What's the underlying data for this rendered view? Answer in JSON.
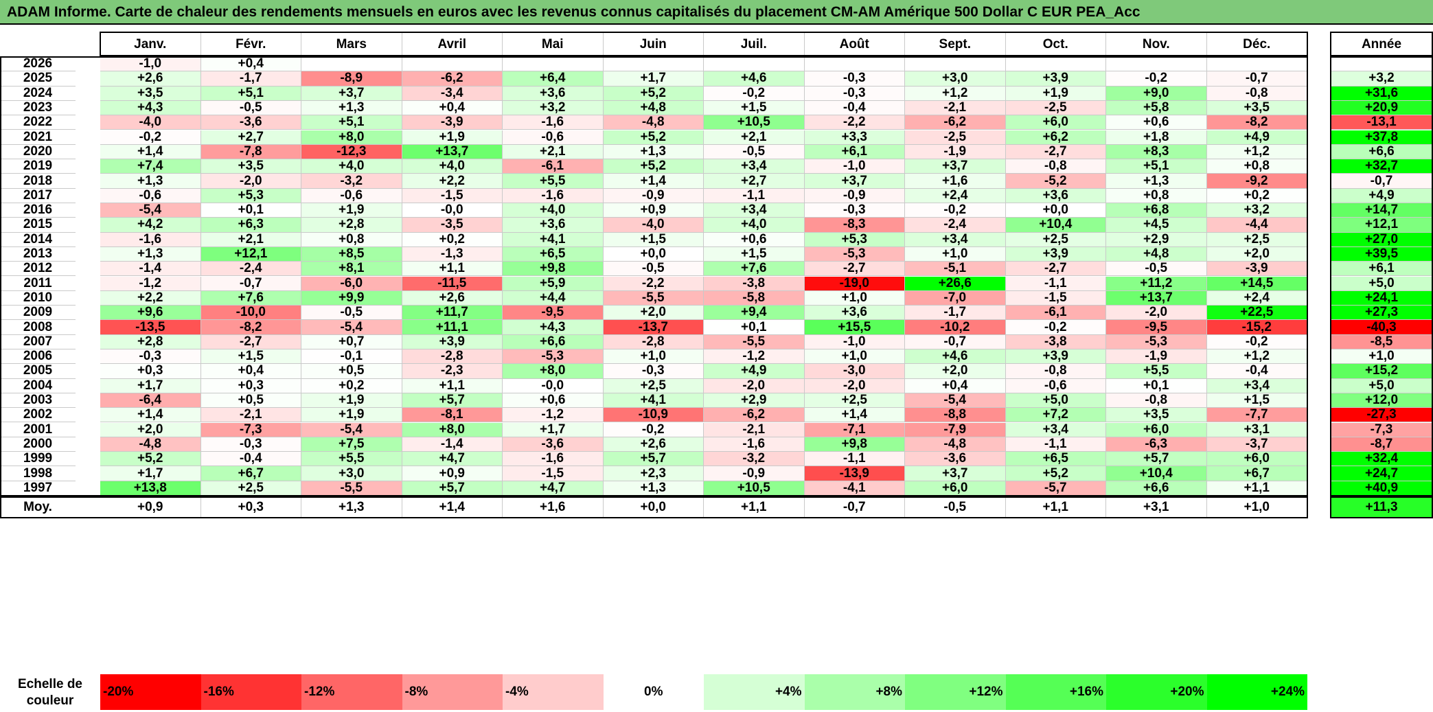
{
  "title": "ADAM Informe. Carte de chaleur des rendements mensuels en euros avec les revenus connus capitalisés du placement CM-AM Amérique 500 Dollar C EUR PEA_Acc",
  "months": [
    "Janv.",
    "Févr.",
    "Mars",
    "Avril",
    "Mai",
    "Juin",
    "Juil.",
    "Août",
    "Sept.",
    "Oct.",
    "Nov.",
    "Déc."
  ],
  "year_header": "Année",
  "avg_label": "Moy.",
  "scale_label": "Echelle de couleur",
  "scale_stops": [
    "-20%",
    "-16%",
    "-12%",
    "-8%",
    "-4%",
    "0%",
    "+4%",
    "+8%",
    "+12%",
    "+16%",
    "+20%",
    "+24%"
  ],
  "chart_data": {
    "type": "heatmap",
    "categories": [
      "Janv.",
      "Févr.",
      "Mars",
      "Avril",
      "Mai",
      "Juin",
      "Juil.",
      "Août",
      "Sept.",
      "Oct.",
      "Nov.",
      "Déc."
    ],
    "rows": [
      {
        "year": "2026",
        "months": [
          "-1,0",
          "+0,4",
          "",
          "",
          "",
          "",
          "",
          "",
          "",
          "",
          "",
          ""
        ],
        "annual": ""
      },
      {
        "year": "2025",
        "months": [
          "+2,6",
          "-1,7",
          "-8,9",
          "-6,2",
          "+6,4",
          "+1,7",
          "+4,6",
          "-0,3",
          "+3,0",
          "+3,9",
          "-0,2",
          "-0,7"
        ],
        "annual": "+3,2"
      },
      {
        "year": "2024",
        "months": [
          "+3,5",
          "+5,1",
          "+3,7",
          "-3,4",
          "+3,6",
          "+5,2",
          "-0,2",
          "-0,3",
          "+1,2",
          "+1,9",
          "+9,0",
          "-0,8"
        ],
        "annual": "+31,6"
      },
      {
        "year": "2023",
        "months": [
          "+4,3",
          "-0,5",
          "+1,3",
          "+0,4",
          "+3,2",
          "+4,8",
          "+1,5",
          "-0,4",
          "-2,1",
          "-2,5",
          "+5,8",
          "+3,5"
        ],
        "annual": "+20,9"
      },
      {
        "year": "2022",
        "months": [
          "-4,0",
          "-3,6",
          "+5,1",
          "-3,9",
          "-1,6",
          "-4,8",
          "+10,5",
          "-2,2",
          "-6,2",
          "+6,0",
          "+0,6",
          "-8,2"
        ],
        "annual": "-13,1"
      },
      {
        "year": "2021",
        "months": [
          "-0,2",
          "+2,7",
          "+8,0",
          "+1,9",
          "-0,6",
          "+5,2",
          "+2,1",
          "+3,3",
          "-2,5",
          "+6,2",
          "+1,8",
          "+4,9"
        ],
        "annual": "+37,8"
      },
      {
        "year": "2020",
        "months": [
          "+1,4",
          "-7,8",
          "-12,3",
          "+13,7",
          "+2,1",
          "+1,3",
          "-0,5",
          "+6,1",
          "-1,9",
          "-2,7",
          "+8,3",
          "+1,2"
        ],
        "annual": "+6,6"
      },
      {
        "year": "2019",
        "months": [
          "+7,4",
          "+3,5",
          "+4,0",
          "+4,0",
          "-6,1",
          "+5,2",
          "+3,4",
          "-1,0",
          "+3,7",
          "-0,8",
          "+5,1",
          "+0,8"
        ],
        "annual": "+32,7"
      },
      {
        "year": "2018",
        "months": [
          "+1,3",
          "-2,0",
          "-3,2",
          "+2,2",
          "+5,5",
          "+1,4",
          "+2,7",
          "+3,7",
          "+1,6",
          "-5,2",
          "+1,3",
          "-9,2"
        ],
        "annual": "-0,7"
      },
      {
        "year": "2017",
        "months": [
          "-0,6",
          "+5,3",
          "-0,6",
          "-1,5",
          "-1,6",
          "-0,9",
          "-1,1",
          "-0,9",
          "+2,4",
          "+3,6",
          "+0,8",
          "+0,2"
        ],
        "annual": "+4,9"
      },
      {
        "year": "2016",
        "months": [
          "-5,4",
          "+0,1",
          "+1,9",
          "-0,0",
          "+4,0",
          "+0,9",
          "+3,4",
          "-0,3",
          "-0,2",
          "+0,0",
          "+6,8",
          "+3,2"
        ],
        "annual": "+14,7"
      },
      {
        "year": "2015",
        "months": [
          "+4,2",
          "+6,3",
          "+2,8",
          "-3,5",
          "+3,6",
          "-4,0",
          "+4,0",
          "-8,3",
          "-2,4",
          "+10,4",
          "+4,5",
          "-4,4"
        ],
        "annual": "+12,1"
      },
      {
        "year": "2014",
        "months": [
          "-1,6",
          "+2,1",
          "+0,8",
          "+0,2",
          "+4,1",
          "+1,5",
          "+0,6",
          "+5,3",
          "+3,4",
          "+2,5",
          "+2,9",
          "+2,5"
        ],
        "annual": "+27,0"
      },
      {
        "year": "2013",
        "months": [
          "+1,3",
          "+12,1",
          "+8,5",
          "-1,3",
          "+6,5",
          "+0,0",
          "+1,5",
          "-5,3",
          "+1,0",
          "+3,9",
          "+4,8",
          "+2,0"
        ],
        "annual": "+39,5"
      },
      {
        "year": "2012",
        "months": [
          "-1,4",
          "-2,4",
          "+8,1",
          "+1,1",
          "+9,8",
          "-0,5",
          "+7,6",
          "-2,7",
          "-5,1",
          "-2,7",
          "-0,5",
          "-3,9"
        ],
        "annual": "+6,1"
      },
      {
        "year": "2011",
        "months": [
          "-1,2",
          "-0,7",
          "-6,0",
          "-11,5",
          "+5,9",
          "-2,2",
          "-3,8",
          "-19,0",
          "+26,6",
          "-1,1",
          "+11,2",
          "+14,5"
        ],
        "annual": "+5,0"
      },
      {
        "year": "2010",
        "months": [
          "+2,2",
          "+7,6",
          "+9,9",
          "+2,6",
          "+4,4",
          "-5,5",
          "-5,8",
          "+1,0",
          "-7,0",
          "-1,5",
          "+13,7",
          "+2,4"
        ],
        "annual": "+24,1"
      },
      {
        "year": "2009",
        "months": [
          "+9,6",
          "-10,0",
          "-0,5",
          "+11,7",
          "-9,5",
          "+2,0",
          "+9,4",
          "+3,6",
          "-1,7",
          "-6,1",
          "-2,0",
          "+22,5"
        ],
        "annual": "+27,3"
      },
      {
        "year": "2008",
        "months": [
          "-13,5",
          "-8,2",
          "-5,4",
          "+11,1",
          "+4,3",
          "-13,7",
          "+0,1",
          "+15,5",
          "-10,2",
          "-0,2",
          "-9,5",
          "-15,2"
        ],
        "annual": "-40,3"
      },
      {
        "year": "2007",
        "months": [
          "+2,8",
          "-2,7",
          "+0,7",
          "+3,9",
          "+6,6",
          "-2,8",
          "-5,5",
          "-1,0",
          "-0,7",
          "-3,8",
          "-5,3",
          "-0,2"
        ],
        "annual": "-8,5"
      },
      {
        "year": "2006",
        "months": [
          "-0,3",
          "+1,5",
          "-0,1",
          "-2,8",
          "-5,3",
          "+1,0",
          "-1,2",
          "+1,0",
          "+4,6",
          "+3,9",
          "-1,9",
          "+1,2"
        ],
        "annual": "+1,0"
      },
      {
        "year": "2005",
        "months": [
          "+0,3",
          "+0,4",
          "+0,5",
          "-2,3",
          "+8,0",
          "-0,3",
          "+4,9",
          "-3,0",
          "+2,0",
          "-0,8",
          "+5,5",
          "-0,4"
        ],
        "annual": "+15,2"
      },
      {
        "year": "2004",
        "months": [
          "+1,7",
          "+0,3",
          "+0,2",
          "+1,1",
          "-0,0",
          "+2,5",
          "-2,0",
          "-2,0",
          "+0,4",
          "-0,6",
          "+0,1",
          "+3,4"
        ],
        "annual": "+5,0"
      },
      {
        "year": "2003",
        "months": [
          "-6,4",
          "+0,5",
          "+1,9",
          "+5,7",
          "+0,6",
          "+4,1",
          "+2,9",
          "+2,5",
          "-5,4",
          "+5,0",
          "-0,8",
          "+1,5"
        ],
        "annual": "+12,0"
      },
      {
        "year": "2002",
        "months": [
          "+1,4",
          "-2,1",
          "+1,9",
          "-8,1",
          "-1,2",
          "-10,9",
          "-6,2",
          "+1,4",
          "-8,8",
          "+7,2",
          "+3,5",
          "-7,7"
        ],
        "annual": "-27,3"
      },
      {
        "year": "2001",
        "months": [
          "+2,0",
          "-7,3",
          "-5,4",
          "+8,0",
          "+1,7",
          "-0,2",
          "-2,1",
          "-7,1",
          "-7,9",
          "+3,4",
          "+6,0",
          "+3,1"
        ],
        "annual": "-7,3"
      },
      {
        "year": "2000",
        "months": [
          "-4,8",
          "-0,3",
          "+7,5",
          "-1,4",
          "-3,6",
          "+2,6",
          "-1,6",
          "+9,8",
          "-4,8",
          "-1,1",
          "-6,3",
          "-3,7"
        ],
        "annual": "-8,7"
      },
      {
        "year": "1999",
        "months": [
          "+5,2",
          "-0,4",
          "+5,5",
          "+4,7",
          "-1,6",
          "+5,7",
          "-3,2",
          "-1,1",
          "-3,6",
          "+6,5",
          "+5,7",
          "+6,0"
        ],
        "annual": "+32,4"
      },
      {
        "year": "1998",
        "months": [
          "+1,7",
          "+6,7",
          "+3,0",
          "+0,9",
          "-1,5",
          "+2,3",
          "-0,9",
          "-13,9",
          "+3,7",
          "+5,2",
          "+10,4",
          "+6,7"
        ],
        "annual": "+24,7"
      },
      {
        "year": "1997",
        "months": [
          "+13,8",
          "+2,5",
          "-5,5",
          "+5,7",
          "+4,7",
          "+1,3",
          "+10,5",
          "-4,1",
          "+6,0",
          "-5,7",
          "+6,6",
          "+1,1"
        ],
        "annual": "+40,9"
      }
    ],
    "average": {
      "months": [
        "+0,9",
        "+0,3",
        "+1,3",
        "+1,4",
        "+1,6",
        "+0,0",
        "+1,1",
        "-0,7",
        "-0,5",
        "+1,1",
        "+3,1",
        "+1,0"
      ],
      "annual": "+11,3"
    },
    "color_scale": {
      "min": -20,
      "max": 24,
      "negative": "#ff0000",
      "zero": "#ffffff",
      "positive": "#00ff00"
    }
  }
}
